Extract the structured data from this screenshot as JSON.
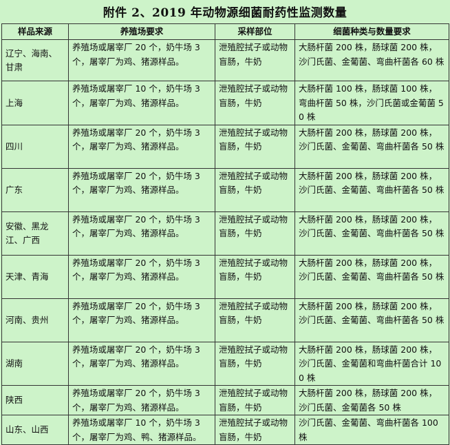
{
  "title": "附件 2、2019 年动物源细菌耐药性监测数量",
  "headers": [
    "样品来源",
    "养殖场要求",
    "采样部位",
    "细菌种类与数量要求"
  ],
  "rows": [
    {
      "source": "辽宁、海南、甘肃",
      "farm": "养殖场或屠宰厂 20 个，奶牛场 3 个，屠宰厂为鸡、猪源样品。",
      "site": "泄殖腔拭子或动物盲肠，牛奶",
      "bacteria": "大肠杆菌 200 株，肠球菌 200 株，沙门氏菌、金葡菌、弯曲杆菌各 60 株"
    },
    {
      "source": "上海",
      "farm": "养殖场或屠宰厂 10 个，奶牛场 3 个，屠宰厂为鸡、猪源样品。",
      "site": "泄殖腔拭子或动物盲肠，牛奶",
      "bacteria": "大肠杆菌 100 株，肠球菌 100 株，弯曲杆菌 50 株，沙门氏菌或金葡菌 50 株"
    },
    {
      "source": "四川",
      "farm": "养殖场或屠宰厂 20 个，奶牛场 3 个，屠宰厂为鸡、猪源样品。",
      "site": "泄殖腔拭子或动物盲肠，牛奶",
      "bacteria": "大肠杆菌 200 株，肠球菌 200 株，沙门氏菌、金葡菌、弯曲杆菌各 50 株"
    },
    {
      "source": "广东",
      "farm": "养殖场或屠宰厂 20 个，奶牛场 3 个，屠宰厂为鸡、猪源样品。",
      "site": "泄殖腔拭子或动物盲肠，牛奶",
      "bacteria": "大肠杆菌 200 株，肠球菌 200 株，沙门氏菌、金葡菌、弯曲杆菌各 50 株"
    },
    {
      "source": "安徽、黑龙江、广西",
      "farm": "养殖场或屠宰厂 20 个，奶牛场 3 个，屠宰厂为鸡、猪源样品。",
      "site": "泄殖腔拭子或动物盲肠，牛奶",
      "bacteria": "大肠杆菌 200 株，肠球菌 200 株，沙门氏菌、金葡菌、弯曲杆菌各 50 株"
    },
    {
      "source": "天津、青海",
      "farm": "养殖场或屠宰厂 20 个，奶牛场 3 个，屠宰厂为鸡、猪源样品。",
      "site": "泄殖腔拭子或动物盲肠，牛奶",
      "bacteria": "大肠杆菌 200 株，肠球菌 200 株，沙门氏菌、金葡菌、弯曲杆菌各 50 株"
    },
    {
      "source": "河南、贵州",
      "farm": "养殖场或屠宰厂 20 个，奶牛场 3 个，屠宰厂为鸡、猪源样品。",
      "site": "泄殖腔拭子或动物盲肠，牛奶",
      "bacteria": "大肠杆菌 200 株，肠球菌 200 株，沙门氏菌、金葡菌、弯曲杆菌各 50 株"
    },
    {
      "source": "湖南",
      "farm": "养殖场或屠宰厂 20 个，奶牛场 3 个，屠宰厂为鸡、猪源样品。",
      "site": "泄殖腔拭子或动物盲肠，牛奶",
      "bacteria": "大肠杆菌 200 株，肠球菌 200 株，沙门氏菌、金葡菌和弯曲杆菌合计 100 株"
    },
    {
      "source": "陕西",
      "farm": "养殖场或屠宰厂 20 个，奶牛场 3 个，屠宰厂为鸡、猪源样品。",
      "site": "泄殖腔拭子或动物盲肠，牛奶",
      "bacteria": "大肠杆菌 200 株，肠球菌 200 株，沙门氏菌、金葡菌各 50 株"
    },
    {
      "source": "山东、山西",
      "farm": "养殖场或屠宰厂 10 个，奶牛场 3 个，屠宰厂为鸡、鸭、猪源样品。",
      "site": "泄殖腔拭子或动物盲肠，牛奶",
      "bacteria": "沙门氏菌、金葡菌、弯曲杆菌各 100 株"
    }
  ]
}
